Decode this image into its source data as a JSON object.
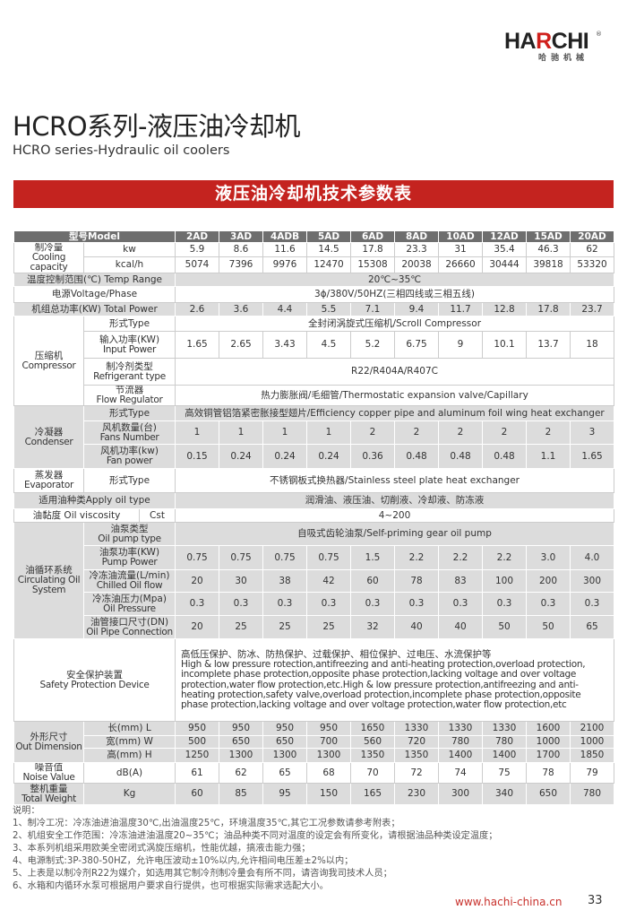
{
  "brand": {
    "name_black": "HA",
    "name_red": "R",
    "name_black2": "CHI",
    "registered": "®",
    "name_cn": "哈驰机械"
  },
  "title": "HCRO系列-液压油冷却机",
  "subtitle": "HCRO series-Hydraulic oil coolers",
  "banner": "液压油冷却机技术参数表",
  "table": {
    "model_label": "型号Model",
    "models": [
      "2AD",
      "3AD",
      "4ADB",
      "5AD",
      "6AD",
      "8AD",
      "10AD",
      "12AD",
      "15AD",
      "20AD"
    ],
    "cooling": {
      "label_cn": "制冷量",
      "label_en": "Cooling capacity",
      "kw_unit": "kw",
      "kw": [
        "5.9",
        "8.6",
        "11.6",
        "14.5",
        "17.8",
        "23.3",
        "31",
        "35.4",
        "46.3",
        "62"
      ],
      "kcal_unit": "kcal/h",
      "kcal": [
        "5074",
        "7396",
        "9976",
        "12470",
        "15308",
        "20038",
        "26660",
        "30444",
        "39818",
        "53320"
      ]
    },
    "temp_range": {
      "label": "温度控制范围(℃) Temp Range",
      "value": "20℃~35℃"
    },
    "voltage": {
      "label": "电源Voltage/Phase",
      "value": "3ϕ/380V/50HZ(三相四线或三相五线)"
    },
    "total_power": {
      "label": "机组总功率(KW) Total Power",
      "values": [
        "2.6",
        "3.6",
        "4.4",
        "5.5",
        "7.1",
        "9.4",
        "11.7",
        "12.8",
        "17.8",
        "23.7"
      ]
    },
    "compressor": {
      "label_cn": "压缩机",
      "label_en": "Compressor",
      "type": {
        "label": "形式Type",
        "value": "全封闭涡旋式压缩机/Scroll Compressor"
      },
      "input_power": {
        "label_cn": "输入功率(KW)",
        "label_en": "Input Power",
        "values": [
          "1.65",
          "2.65",
          "3.43",
          "4.5",
          "5.2",
          "6.75",
          "9",
          "10.1",
          "13.7",
          "18"
        ]
      },
      "refrigerant": {
        "label_cn": "制冷剂类型",
        "label_en": "Refrigerant type",
        "value": "R22/R404A/R407C"
      },
      "flow_regulator": {
        "label_cn": "节流器",
        "label_en": "Flow Regulator",
        "value": "热力膨胀阀/毛细管/Thermostatic expansion valve/Capillary"
      }
    },
    "condenser": {
      "label_cn": "冷凝器",
      "label_en": "Condenser",
      "type": {
        "label": "形式Type",
        "value": "高效铜管铝箔紧密胀接型翅片/Efficiency copper pipe and aluminum foil wing heat exchanger"
      },
      "fans": {
        "label_cn": "风机数量(台)",
        "label_en": "Fans Number",
        "values": [
          "1",
          "1",
          "1",
          "1",
          "2",
          "2",
          "2",
          "2",
          "2",
          "3"
        ]
      },
      "fan_power": {
        "label_cn": "风机功率(kw)",
        "label_en": "Fan power",
        "values": [
          "0.15",
          "0.24",
          "0.24",
          "0.24",
          "0.36",
          "0.48",
          "0.48",
          "0.48",
          "1.1",
          "1.65"
        ]
      }
    },
    "evaporator": {
      "label_cn": "蒸发器",
      "label_en": "Evaporator",
      "type_label": "形式Type",
      "value": "不锈钢板式换热器/Stainless steel plate heat exchanger"
    },
    "oil_type": {
      "label": "适用油种类Apply oil type",
      "value": "润滑油、液压油、切削液、冷却液、防冻液"
    },
    "viscosity": {
      "label": "油黏度 Oil viscosity",
      "unit": "Cst",
      "value": "4~200"
    },
    "oil_system": {
      "label_cn": "油循环系统",
      "label_en": "Circulating Oil System",
      "pump_type": {
        "label_cn": "油泵类型",
        "label_en": "Oil pump type",
        "value": "自吸式齿轮油泵/Self-priming gear oil pump"
      },
      "pump_power": {
        "label_cn": "油泵功率(KW)",
        "label_en": "Pump Power",
        "values": [
          "0.75",
          "0.75",
          "0.75",
          "0.75",
          "1.5",
          "2.2",
          "2.2",
          "2.2",
          "3.0",
          "4.0"
        ]
      },
      "oil_flow": {
        "label_cn": "冷冻油流量(L/min)",
        "label_en": "Chilled Oil flow",
        "values": [
          "20",
          "30",
          "38",
          "42",
          "60",
          "78",
          "83",
          "100",
          "200",
          "300"
        ]
      },
      "oil_pressure": {
        "label_cn": "冷冻油压力(Mpa)",
        "label_en": "Oil Pressure",
        "values": [
          "0.3",
          "0.3",
          "0.3",
          "0.3",
          "0.3",
          "0.3",
          "0.3",
          "0.3",
          "0.3",
          "0.3"
        ]
      },
      "pipe": {
        "label_cn": "油管接口尺寸(DN)",
        "label_en": "Oil Pipe Connection",
        "values": [
          "20",
          "25",
          "25",
          "25",
          "32",
          "40",
          "40",
          "50",
          "50",
          "65"
        ]
      }
    },
    "safety": {
      "label_cn": "安全保护装置",
      "label_en": "Safety Protection Device",
      "text_cn": "高低压保护、防冰、防热保护、过载保护、相位保护、过电压、水流保护等",
      "text_en": "High & low pressure rotection,antifreezing and anti-heating protection,overload protection, incomplete phase protection,opposite phase protection,lacking voltage and over voltage protection,water flow protection,etc.High & low pressure protection,antifreezing and anti-heating protection,safety valve,overload protection,incomplete phase protection,opposite phase protection,lacking voltage and over voltage protection,water flow protection,etc"
    },
    "dimension": {
      "label_cn": "外形尺寸",
      "label_en": "Out Dimension",
      "length": {
        "label": "长(mm) L",
        "values": [
          "950",
          "950",
          "950",
          "950",
          "1650",
          "1330",
          "1330",
          "1330",
          "1600",
          "2100"
        ]
      },
      "width": {
        "label": "宽(mm) W",
        "values": [
          "500",
          "650",
          "650",
          "700",
          "560",
          "720",
          "780",
          "780",
          "1000",
          "1000"
        ]
      },
      "height": {
        "label": "高(mm) H",
        "values": [
          "1250",
          "1300",
          "1300",
          "1300",
          "1350",
          "1350",
          "1400",
          "1400",
          "1700",
          "1850"
        ]
      }
    },
    "noise": {
      "label_cn": "噪音值",
      "label_en": "Noise Value",
      "unit": "dB(A)",
      "values": [
        "61",
        "62",
        "65",
        "68",
        "70",
        "72",
        "74",
        "75",
        "78",
        "79"
      ]
    },
    "weight": {
      "label_cn": "整机重量",
      "label_en": "Total Weight",
      "unit": "Kg",
      "values": [
        "60",
        "85",
        "95",
        "150",
        "165",
        "230",
        "300",
        "340",
        "650",
        "780"
      ]
    }
  },
  "notes": {
    "title": "说明：",
    "items": [
      "1、制冷工况：冷冻油进油温度30℃,出油温度25℃，环境温度35℃,其它工况参数请参考附表；",
      "2、机组安全工作范围：冷冻油进油温度20~35℃；油品种类不同对温度的设定会有所变化，请根据油品种类设定温度；",
      "3、本系列机组采用欧美全密闭式涡旋压缩机，性能优越，搞液击能力强；",
      "4、电源制式:3P-380-50HZ，允许电压波动±10%以内,允许相间电压差±2%以内；",
      "5、上表是以制冷剂R22为媒介，如选用其它制冷剂制冷量会有所不同，请咨询我司技术人员；",
      "6、水箱和内循环水泵可根据用户要求自行提供，也可根据实际需求选配大小。"
    ]
  },
  "footer": {
    "url": "www.hachi-china.cn",
    "page": "33"
  }
}
